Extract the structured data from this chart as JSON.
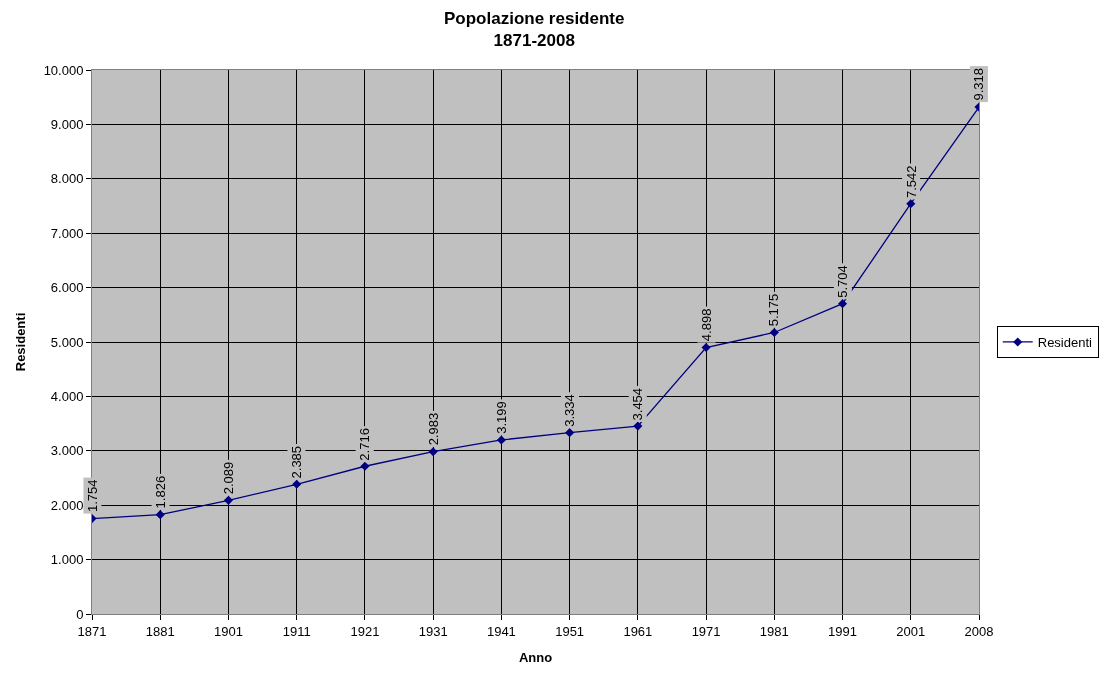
{
  "chart_data": {
    "type": "line",
    "title": "Popolazione residente\n1871-2008",
    "xlabel": "Anno",
    "ylabel": "Residenti",
    "categories": [
      "1871",
      "1881",
      "1901",
      "1911",
      "1921",
      "1931",
      "1941",
      "1951",
      "1961",
      "1971",
      "1981",
      "1991",
      "2001",
      "2008"
    ],
    "series": [
      {
        "name": "Residenti",
        "color": "#000080",
        "values": [
          1754,
          1826,
          2089,
          2385,
          2716,
          2983,
          3199,
          3334,
          3454,
          4898,
          5175,
          5704,
          7542,
          9318
        ],
        "value_labels": [
          "1.754",
          "1.826",
          "2.089",
          "2.385",
          "2.716",
          "2.983",
          "3.199",
          "3.334",
          "3.454",
          "4.898",
          "5.175",
          "5.704",
          "7.542",
          "9.318"
        ]
      }
    ],
    "ylim": [
      0,
      10000
    ],
    "yticks": [
      {
        "value": 0,
        "label": "0"
      },
      {
        "value": 1000,
        "label": "1.000"
      },
      {
        "value": 2000,
        "label": "2.000"
      },
      {
        "value": 3000,
        "label": "3.000"
      },
      {
        "value": 4000,
        "label": "4.000"
      },
      {
        "value": 5000,
        "label": "5.000"
      },
      {
        "value": 6000,
        "label": "6.000"
      },
      {
        "value": 7000,
        "label": "7.000"
      },
      {
        "value": 8000,
        "label": "8.000"
      },
      {
        "value": 9000,
        "label": "9.000"
      },
      {
        "value": 10000,
        "label": "10.000"
      }
    ],
    "grid": true,
    "legend": "right",
    "marker": "diamond",
    "line_style": "solid"
  }
}
